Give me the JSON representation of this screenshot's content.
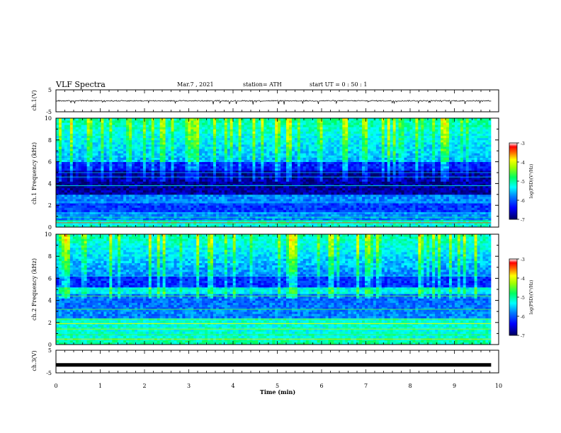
{
  "header": {
    "title": "VLF Spectra",
    "date": "Mar.7 , 2021",
    "station": "station= ATH",
    "start": "start UT = 0 : 50 : 1"
  },
  "chart_data": [
    {
      "type": "line",
      "panel": "ch1-waveform",
      "ylabel": "ch.1(V)",
      "ylim": [
        -5,
        5
      ],
      "yticks": [
        "5",
        "-5"
      ],
      "xlim": [
        0,
        10
      ],
      "baseline": 0,
      "description_values": "noisy waveform near 0 V with spikes to about -1.5 V"
    },
    {
      "type": "heatmap",
      "panel": "ch1-spectrogram",
      "ylabel": "ch.1 Frequency (kHz)",
      "ylim": [
        0,
        10
      ],
      "yticks": [
        "0",
        "2",
        "4",
        "6",
        "8",
        "10"
      ],
      "xlim": [
        0,
        10
      ],
      "colorbar": {
        "label": "log(PSD)(V²/Hz)",
        "range": [
          -7,
          -3
        ],
        "ticks": [
          "-3",
          "-4",
          "-5",
          "-6",
          "-7"
        ]
      }
    },
    {
      "type": "heatmap",
      "panel": "ch2-spectrogram",
      "ylabel": "ch.2 Frequency (kHz)",
      "ylim": [
        0,
        10
      ],
      "yticks": [
        "0",
        "2",
        "4",
        "6",
        "8",
        "10"
      ],
      "xlim": [
        0,
        10
      ],
      "colorbar": {
        "label": "log(PSD)(V²/Hz)",
        "range": [
          -7,
          -3
        ],
        "ticks": [
          "-3",
          "-4",
          "-5",
          "-6",
          "-7"
        ]
      }
    },
    {
      "type": "line",
      "panel": "ch3-waveform",
      "ylabel": "ch.3(V)",
      "ylim": [
        -5,
        5
      ],
      "yticks": [
        "5",
        "-5"
      ],
      "xlim": [
        0,
        10
      ],
      "baseline": -1.5
    }
  ],
  "xaxis": {
    "label": "Time (min)",
    "ticks": [
      "0",
      "1",
      "2",
      "3",
      "4",
      "5",
      "6",
      "7",
      "8",
      "9",
      "10"
    ],
    "data_end": 9.83
  },
  "colors": {
    "frame": "#000000",
    "colormap": [
      "#000080",
      "#0000ff",
      "#0080ff",
      "#00ffff",
      "#00ff80",
      "#80ff00",
      "#ffff00",
      "#ff8000",
      "#ff0000",
      "#ffffff"
    ]
  }
}
